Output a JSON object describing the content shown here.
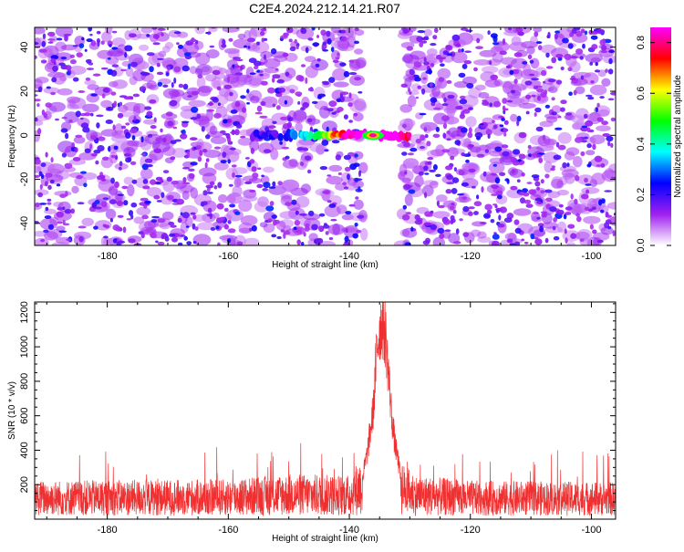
{
  "figure": {
    "title": "C2E4.2024.212.14.21.R07"
  },
  "chart_data": [
    {
      "type": "heatmap",
      "xlabel": "Height of straight line (km)",
      "ylabel": "Frequency (Hz)",
      "xlim": [
        -192,
        -96
      ],
      "ylim": [
        -50,
        49
      ],
      "xticks": [
        -180,
        -160,
        -140,
        -120,
        -100
      ],
      "yticks": [
        -40,
        -20,
        0,
        20,
        40
      ],
      "colorbar": {
        "label": "Normalized spectral amplitude",
        "range": [
          0.0,
          0.86
        ],
        "ticks": [
          0.0,
          0.2,
          0.4,
          0.6,
          0.8
        ],
        "colormap": [
          "#ffffff",
          "#a020f0",
          "#0000ff",
          "#00ffff",
          "#00ff00",
          "#ffff00",
          "#ff0000",
          "#ff00ff"
        ]
      },
      "gap_region_km": [
        -138,
        -131
      ],
      "signal_band": {
        "x_range_km": [
          -156,
          -130
        ],
        "frequency_hz": 0,
        "peak_x_km": -135.5,
        "peak_value": 0.82
      }
    },
    {
      "type": "line",
      "xlabel": "Height of straight line (km)",
      "ylabel": "SNR (10 * v/v)",
      "xlim": [
        -192,
        -96
      ],
      "ylim": [
        0,
        1260
      ],
      "xticks": [
        -180,
        -160,
        -140,
        -120,
        -100
      ],
      "yticks": [
        200,
        400,
        600,
        800,
        1000,
        1200
      ],
      "series_color": "#f03030",
      "baseline_range": [
        20,
        280
      ],
      "profile": [
        {
          "x": -192,
          "y": 140
        },
        {
          "x": -160,
          "y": 145
        },
        {
          "x": -150,
          "y": 165
        },
        {
          "x": -140,
          "y": 160
        },
        {
          "x": -138,
          "y": 230
        },
        {
          "x": -137,
          "y": 420
        },
        {
          "x": -136,
          "y": 700
        },
        {
          "x": -135.5,
          "y": 1050
        },
        {
          "x": -135,
          "y": 1200
        },
        {
          "x": -134.5,
          "y": 1230
        },
        {
          "x": -134,
          "y": 1150
        },
        {
          "x": -133.5,
          "y": 900
        },
        {
          "x": -133,
          "y": 650
        },
        {
          "x": -132.5,
          "y": 480
        },
        {
          "x": -132,
          "y": 380
        },
        {
          "x": -131.5,
          "y": 260
        },
        {
          "x": -131,
          "y": 200
        },
        {
          "x": -129,
          "y": 160
        },
        {
          "x": -120,
          "y": 140
        },
        {
          "x": -96,
          "y": 135
        }
      ]
    }
  ]
}
